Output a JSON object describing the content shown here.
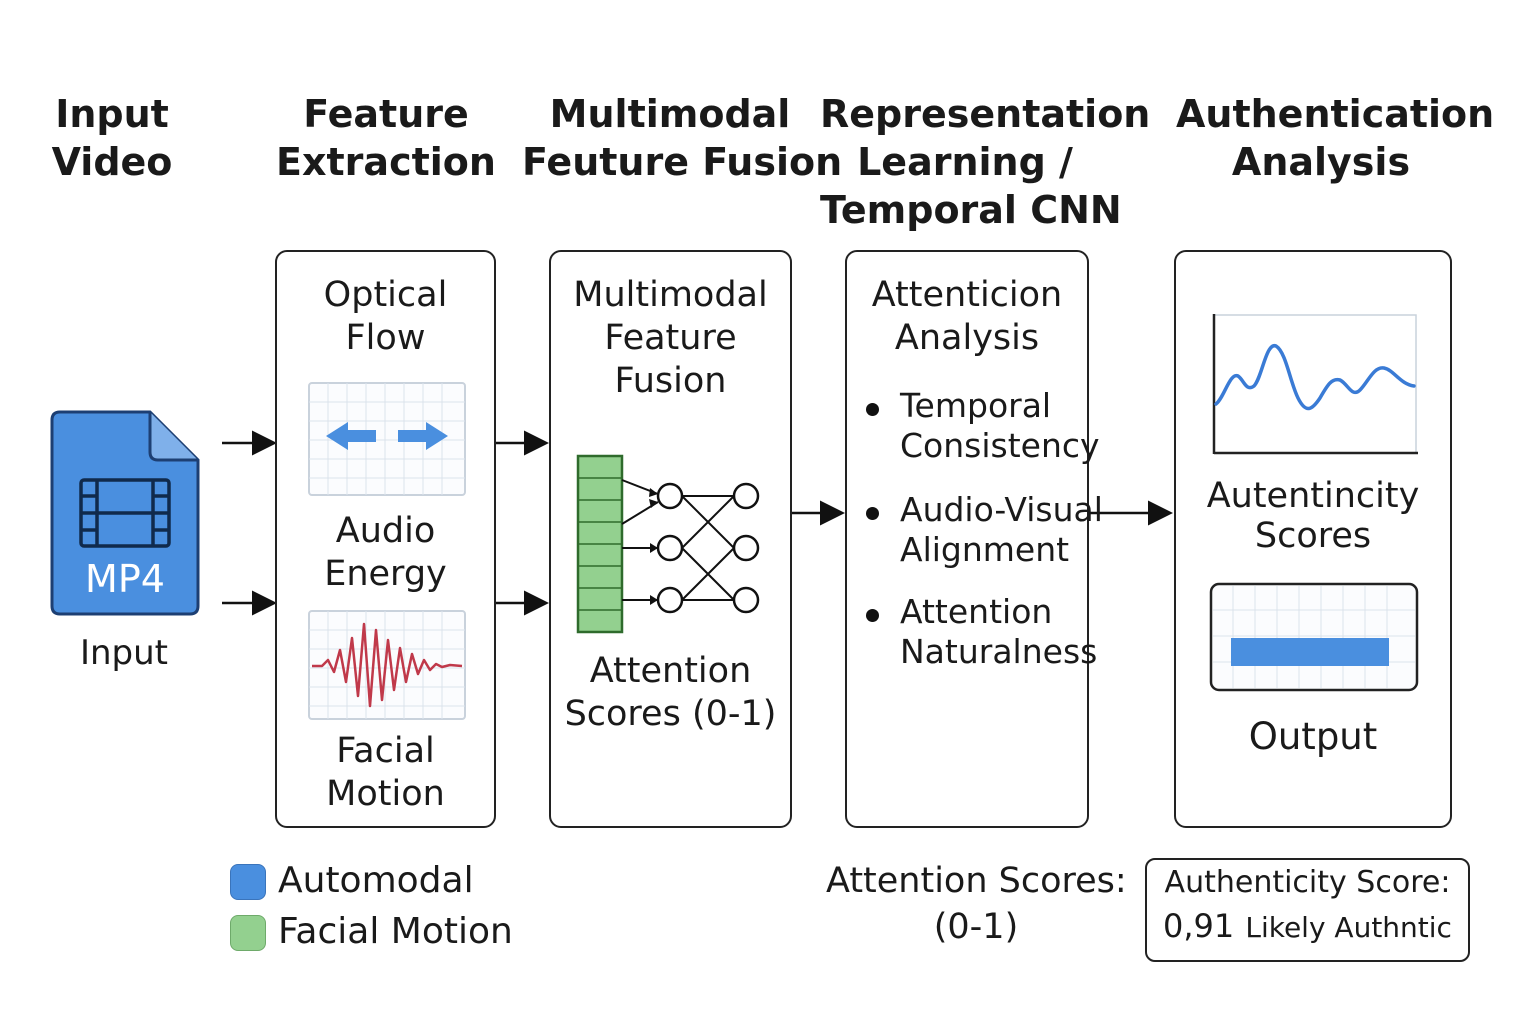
{
  "stages": {
    "input": {
      "title_line1": "Input",
      "title_line2": "Video"
    },
    "feature_extraction": {
      "title_line1": "Feature",
      "title_line2": "Extraction"
    },
    "multimodal_fusion": {
      "title_line1": "Multimodal",
      "title_line2": "Feuture Fusion"
    },
    "representation": {
      "title_line1": "Representation",
      "title_line2": "Learning /",
      "title_line3": "Temporal CNN"
    },
    "authentication": {
      "title_line1": "Authentication",
      "title_line2": "Analysis"
    }
  },
  "input_file": {
    "badge": "MP4",
    "caption": "Input",
    "icon": "video-file-icon",
    "color": "#4a8fdf"
  },
  "feature_box": {
    "optical_line1": "Optical",
    "optical_line2": "Flow",
    "audio_line1": "Audio",
    "audio_line2": "Energy",
    "facial_line1": "Facial",
    "facial_line2": "Motion",
    "arrow_color": "#4a8fdf",
    "wave_color": "#c0394a"
  },
  "fusion_box": {
    "title_line1": "Multimodal",
    "title_line2": "Feature",
    "title_line3": "Fusion",
    "caption_line1": "Attention",
    "caption_line2": "Scores (0-1)",
    "vector_color": "#93d08f"
  },
  "attention_box": {
    "title_line1": "Attenticion",
    "title_line2": "Analysis",
    "bullets": [
      {
        "line1": "Temporal",
        "line2": "Consistency"
      },
      {
        "line1": "Audio-Visual",
        "line2": "Alignment"
      },
      {
        "line1": "Attention",
        "line2": "Naturalness"
      }
    ]
  },
  "auth_box": {
    "scores_line1": "Autentincity",
    "scores_line2": "Scores",
    "output_label": "Output",
    "line_color": "#3a7bd5",
    "bar_color": "#4a8fdf"
  },
  "legend": [
    {
      "label": "Automodal",
      "color": "#4a8fdf"
    },
    {
      "label": "Facial Motion",
      "color": "#93d08f"
    }
  ],
  "attention_scores_note": {
    "line1": "Attention Scores:",
    "line2": "(0-1)"
  },
  "result": {
    "line1": "Authenticity Score:",
    "score": "0,91",
    "verdict": "Likely Authntic"
  }
}
